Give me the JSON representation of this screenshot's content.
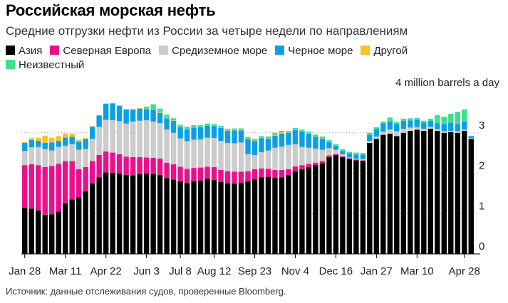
{
  "title": "Российская морская нефть",
  "subtitle": "Средние отгрузки нефти из России за четыре недели по направлениям",
  "source": "Источник: данные отслеживания судов, проверенные Bloomberg.",
  "chart_data": {
    "type": "bar",
    "stacked": true,
    "unit_label": "4 million barrels a day",
    "ylim": [
      0,
      4
    ],
    "yticks": [
      0,
      1,
      2,
      3
    ],
    "ytick_labels": [
      "0",
      "1",
      "2",
      "3"
    ],
    "xtick_labels": [
      "Jan 28",
      "Mar 11",
      "Apr 22",
      "Jun 3",
      "Jul 8",
      "Aug 12",
      "Sep 23",
      "Nov 4",
      "Dec 16",
      "Jan 27",
      "Mar 10",
      "Apr 28"
    ],
    "xtick_positions": [
      0,
      6,
      12,
      18,
      23,
      28,
      34,
      40,
      46,
      52,
      58,
      65
    ],
    "series": [
      {
        "name": "Азия",
        "color": "#000000",
        "values": [
          1.15,
          1.12,
          1.08,
          0.97,
          0.98,
          1.05,
          1.25,
          1.35,
          1.4,
          1.55,
          1.75,
          1.9,
          2.02,
          2.01,
          1.99,
          1.96,
          1.95,
          1.98,
          1.99,
          1.98,
          1.96,
          1.88,
          1.84,
          1.8,
          1.76,
          1.8,
          1.82,
          1.86,
          1.83,
          1.78,
          1.75,
          1.74,
          1.76,
          1.8,
          1.85,
          1.9,
          1.91,
          1.88,
          1.9,
          1.95,
          2.05,
          2.1,
          2.15,
          2.2,
          2.25,
          2.4,
          2.45,
          2.4,
          2.35,
          2.32,
          2.3,
          2.75,
          2.85,
          2.95,
          2.98,
          2.92,
          3.0,
          3.05,
          3.08,
          3.05,
          3.1,
          3.05,
          3.0,
          3.02,
          3.0,
          3.05,
          2.85
        ]
      },
      {
        "name": "Северная Европа",
        "color": "#ec0f8c",
        "values": [
          1.05,
          1.1,
          1.12,
          1.18,
          1.2,
          1.18,
          1.05,
          0.95,
          0.7,
          0.6,
          0.55,
          0.55,
          0.52,
          0.5,
          0.48,
          0.45,
          0.45,
          0.42,
          0.4,
          0.4,
          0.4,
          0.38,
          0.38,
          0.36,
          0.35,
          0.33,
          0.32,
          0.3,
          0.32,
          0.3,
          0.3,
          0.3,
          0.28,
          0.25,
          0.25,
          0.22,
          0.2,
          0.2,
          0.18,
          0.15,
          0.12,
          0.1,
          0.08,
          0.06,
          0.05,
          0.04,
          0.03,
          0.02,
          0.02,
          0.02,
          0.02,
          0.0,
          0.0,
          0.0,
          0.0,
          0.0,
          0.0,
          0.0,
          0.0,
          0.0,
          0.0,
          0.0,
          0.0,
          0.0,
          0.0,
          0.0,
          0.0
        ]
      },
      {
        "name": "Средиземное море",
        "color": "#cccccc",
        "values": [
          0.35,
          0.42,
          0.45,
          0.45,
          0.38,
          0.42,
          0.38,
          0.42,
          0.48,
          0.45,
          0.55,
          0.7,
          0.78,
          0.8,
          0.82,
          0.82,
          0.88,
          0.9,
          0.92,
          0.9,
          0.88,
          0.82,
          0.78,
          0.7,
          0.68,
          0.7,
          0.7,
          0.72,
          0.72,
          0.72,
          0.7,
          0.7,
          0.72,
          0.42,
          0.35,
          0.4,
          0.45,
          0.55,
          0.58,
          0.6,
          0.55,
          0.45,
          0.4,
          0.35,
          0.28,
          0.18,
          0.1,
          0.05,
          0.02,
          0.02,
          0.03,
          0.05,
          0.06,
          0.08,
          0.1,
          0.12,
          0.1,
          0.08,
          0.06,
          0.05,
          0.05,
          0.04,
          0.04,
          0.03,
          0.04,
          0.03,
          0.02
        ]
      },
      {
        "name": "Черное море",
        "color": "#0aa0e8",
        "values": [
          0.2,
          0.18,
          0.15,
          0.15,
          0.2,
          0.15,
          0.2,
          0.18,
          0.2,
          0.25,
          0.3,
          0.28,
          0.4,
          0.42,
          0.38,
          0.35,
          0.3,
          0.3,
          0.28,
          0.3,
          0.25,
          0.28,
          0.3,
          0.28,
          0.3,
          0.3,
          0.3,
          0.3,
          0.3,
          0.32,
          0.3,
          0.32,
          0.3,
          0.38,
          0.35,
          0.35,
          0.3,
          0.3,
          0.32,
          0.3,
          0.35,
          0.38,
          0.35,
          0.3,
          0.28,
          0.15,
          0.1,
          0.08,
          0.1,
          0.1,
          0.1,
          0.15,
          0.18,
          0.2,
          0.2,
          0.18,
          0.2,
          0.18,
          0.18,
          0.15,
          0.15,
          0.15,
          0.18,
          0.2,
          0.18,
          0.2,
          0.05
        ]
      },
      {
        "name": "Другой",
        "color": "#f7c12b",
        "values": [
          0.02,
          0.05,
          0.08,
          0.18,
          0.12,
          0.12,
          0.1,
          0.08,
          0.05,
          0.02,
          0.02,
          0.01,
          0.01,
          0.01,
          0.01,
          0.01,
          0.01,
          0.01,
          0.01,
          0.01,
          0.01,
          0.01,
          0.01,
          0.01,
          0.01,
          0.01,
          0.01,
          0.01,
          0.01,
          0.01,
          0.01,
          0.01,
          0.01,
          0.01,
          0.01,
          0.01,
          0.01,
          0.03,
          0.03,
          0.01,
          0.01,
          0.01,
          0.01,
          0.01,
          0.01,
          0.01,
          0.0,
          0.0,
          0.0,
          0.0,
          0.0,
          0.0,
          0.0,
          0.0,
          0.0,
          0.0,
          0.0,
          0.0,
          0.0,
          0.0,
          0.0,
          0.0,
          0.0,
          0.0,
          0.0,
          0.0,
          0.0
        ]
      },
      {
        "name": "Неизвестный",
        "color": "#3ee08c",
        "values": [
          0.0,
          0.0,
          0.0,
          0.0,
          0.0,
          0.0,
          0.0,
          0.0,
          0.0,
          0.0,
          0.0,
          0.0,
          0.0,
          0.0,
          0.0,
          0.0,
          0.0,
          0.0,
          0.05,
          0.12,
          0.1,
          0.08,
          0.05,
          0.05,
          0.05,
          0.05,
          0.04,
          0.04,
          0.04,
          0.04,
          0.04,
          0.04,
          0.04,
          0.04,
          0.04,
          0.04,
          0.04,
          0.04,
          0.04,
          0.04,
          0.04,
          0.04,
          0.04,
          0.04,
          0.04,
          0.04,
          0.04,
          0.04,
          0.04,
          0.05,
          0.05,
          0.05,
          0.05,
          0.05,
          0.1,
          0.05,
          0.05,
          0.05,
          0.05,
          0.05,
          0.05,
          0.2,
          0.18,
          0.22,
          0.3,
          0.3,
          0.0
        ]
      }
    ]
  }
}
